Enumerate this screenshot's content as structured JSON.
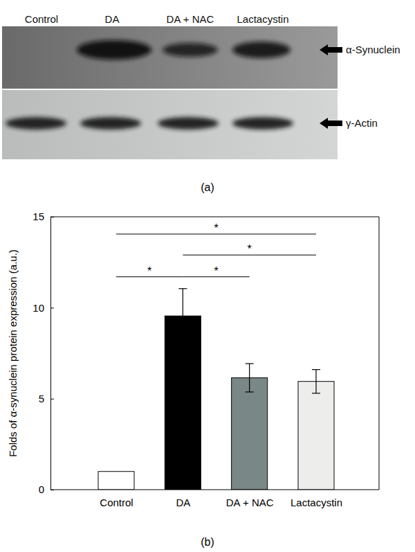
{
  "blot": {
    "label": "(a)",
    "lanes": [
      "Control",
      "DA",
      "DA + NAC",
      "Lactacystin"
    ],
    "bands": [
      "α-Synuclein",
      "γ-Actin"
    ]
  },
  "chart_data": {
    "type": "bar",
    "label": "(b)",
    "categories": [
      "Control",
      "DA",
      "DA + NAC",
      "Lactacystin"
    ],
    "values": [
      1.0,
      9.55,
      6.15,
      5.95
    ],
    "errors": [
      0,
      1.5,
      0.78,
      0.65
    ],
    "colors": [
      "#ffffff",
      "#000000",
      "#7a8787",
      "#ededeb"
    ],
    "y_label": "Folds of α-synuclein protein expression (a.u.)",
    "ylim": [
      0,
      15
    ],
    "yticks": [
      0,
      5,
      10,
      15
    ],
    "grid": false,
    "significance": [
      {
        "from": 0,
        "to": 3,
        "y": 14.05,
        "label": "*"
      },
      {
        "from": 1,
        "to": 3,
        "y": 12.9,
        "label": "*"
      },
      {
        "from": 0,
        "to": 1,
        "y": 11.7,
        "label": "*"
      },
      {
        "from": 1,
        "to": 2,
        "y": 11.7,
        "label": "*"
      }
    ]
  }
}
